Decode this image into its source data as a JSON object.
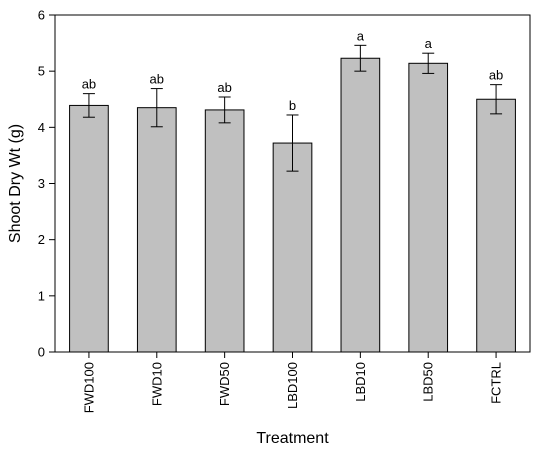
{
  "chart_data": {
    "type": "bar",
    "title": "",
    "xlabel": "Treatment",
    "ylabel": "Shoot Dry Wt (g)",
    "ylim": [
      0,
      6
    ],
    "yticks": [
      "0",
      "1",
      "2",
      "3",
      "4",
      "5",
      "6"
    ],
    "grid": false,
    "legend": "none",
    "categories": [
      "FWD100",
      "FWD10",
      "FWD50",
      "LBD100",
      "LBD10",
      "LBD50",
      "FCTRL"
    ],
    "values": [
      4.39,
      4.35,
      4.31,
      3.72,
      5.23,
      5.14,
      4.5
    ],
    "errors": [
      0.21,
      0.34,
      0.23,
      0.5,
      0.23,
      0.18,
      0.26
    ],
    "significance": [
      "ab",
      "ab",
      "ab",
      "b",
      "a",
      "a",
      "ab"
    ],
    "bar_color": "#c0c0c0",
    "edge_color": "#000000"
  }
}
